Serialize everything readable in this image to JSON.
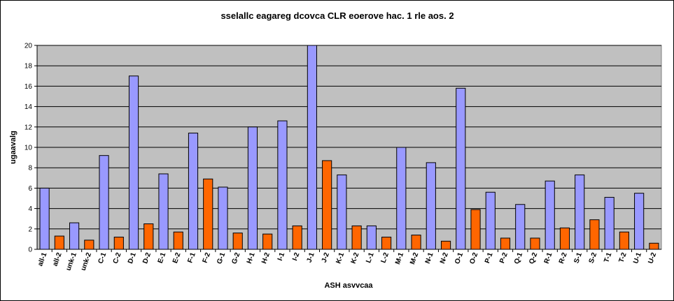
{
  "chart_data": {
    "type": "bar",
    "title": "sselallc eagareg dcovca CLR eoerove hac. 1 rle aos. 2",
    "xlabel": "ASH asvvcaa",
    "ylabel": "ugaavalg",
    "ylim": [
      0,
      20
    ],
    "yticks": [
      "0",
      "2",
      "4",
      "6",
      "8",
      "10",
      "12",
      "14",
      "16",
      "18",
      "20"
    ],
    "grid": true,
    "legend": "none",
    "colors": {
      "series1": "#9999FF",
      "series2": "#FF6600",
      "plot_bg": "#C0C0C0",
      "gridline": "#000000"
    },
    "categories": [
      "all-1",
      "all-2",
      "unk-1",
      "unk-2",
      "C-1",
      "C-2",
      "D-1",
      "D-2",
      "E-1",
      "E-2",
      "F-1",
      "F-2",
      "G-1",
      "G-2",
      "H-1",
      "H-2",
      "I-1",
      "I-2",
      "J-1",
      "J-2",
      "K-1",
      "K-2",
      "L-1",
      "L-2",
      "M-1",
      "M-2",
      "N-1",
      "N-2",
      "O-1",
      "O-2",
      "P-1",
      "P-2",
      "Q-1",
      "Q-2",
      "R-1",
      "R-2",
      "S-1",
      "S-2",
      "T-1",
      "T-2",
      "U-1",
      "U-2"
    ],
    "values": [
      6.0,
      1.3,
      2.6,
      0.9,
      9.2,
      1.2,
      17.0,
      2.5,
      7.4,
      1.7,
      11.4,
      6.9,
      6.1,
      1.6,
      12.0,
      1.5,
      12.6,
      2.3,
      20.0,
      8.7,
      7.3,
      2.3,
      2.3,
      1.2,
      10.0,
      1.4,
      8.5,
      0.8,
      15.8,
      3.9,
      5.6,
      1.1,
      4.4,
      1.1,
      6.7,
      2.1,
      7.3,
      2.9,
      5.1,
      1.7,
      5.5,
      0.6
    ]
  }
}
